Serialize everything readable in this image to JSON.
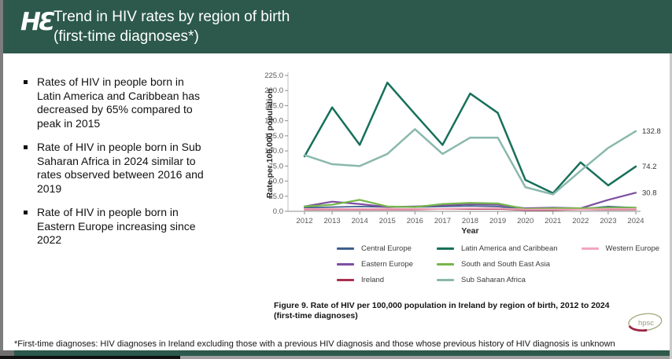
{
  "header": {
    "title_line1": "Trend in HIV rates by region of birth",
    "title_line2": "(first-time diagnoses*)",
    "logo_text": "HƐ"
  },
  "bullets": [
    "Rates of HIV in people born in Latin America and Caribbean has decreased by 65% compared to peak in 2015",
    "Rate of HIV in people born in Sub Saharan Africa in 2024 similar to rates observed between 2016 and 2019",
    "Rate of HIV in people born in Eastern Europe increasing since 2022"
  ],
  "chart_data": {
    "type": "line",
    "x": [
      2012,
      2013,
      2014,
      2015,
      2016,
      2017,
      2018,
      2019,
      2020,
      2021,
      2022,
      2023,
      2024
    ],
    "xlabel": "Year",
    "ylabel": "Rate per 100,000 population",
    "ylim": [
      0,
      225
    ],
    "ytick_step": 25,
    "grid": false,
    "legend_position": "bottom",
    "series": [
      {
        "name": "Central Europe",
        "color": "#3f5e8e",
        "values": [
          6,
          7,
          8,
          7,
          7,
          8,
          9,
          8,
          3,
          4,
          4,
          8,
          6
        ]
      },
      {
        "name": "Eastern Europe",
        "color": "#7c4fa0",
        "values": [
          8,
          16,
          12,
          7,
          8,
          10,
          12,
          11,
          5,
          6,
          5,
          19,
          30.8
        ],
        "end_label": "30.8"
      },
      {
        "name": "Ireland",
        "color": "#a8304f",
        "values": [
          3,
          3,
          3,
          3,
          3,
          4,
          4,
          4,
          2,
          2,
          3,
          3,
          3
        ]
      },
      {
        "name": "Latin America and Caribbean",
        "color": "#17705a",
        "values": [
          91,
          172,
          110,
          213,
          161,
          110,
          195,
          163,
          52,
          30,
          81,
          43,
          74.2
        ],
        "end_label": "74.2"
      },
      {
        "name": "South and South East Asia",
        "color": "#76b64a",
        "values": [
          8,
          11,
          19,
          8,
          7,
          12,
          14,
          13,
          4,
          5,
          5,
          6,
          6
        ]
      },
      {
        "name": "Sub Saharan Africa",
        "color": "#8ab8ad",
        "values": [
          93,
          78,
          75,
          95,
          136,
          95,
          122,
          122,
          40,
          28,
          67,
          105,
          132.8
        ],
        "end_label": "132.8"
      },
      {
        "name": "Western Europe",
        "color": "#f4a6bd",
        "values": [
          4,
          4,
          4,
          4,
          4,
          4,
          5,
          5,
          3,
          3,
          3,
          4,
          4
        ]
      }
    ]
  },
  "caption": {
    "line1": "Figure 9. Rate of HIV per 100,000 population in Ireland by region of birth, 2012 to 2024",
    "line2": "(first-time diagnoses)"
  },
  "footnote": "*First-time diagnoses: HIV diagnoses in Ireland excluding those with a previous HIV diagnosis and those whose previous history of HIV diagnosis is unknown",
  "logos": {
    "hpsc": "hpsc"
  },
  "colors": {
    "header_green": "#2c594b"
  }
}
